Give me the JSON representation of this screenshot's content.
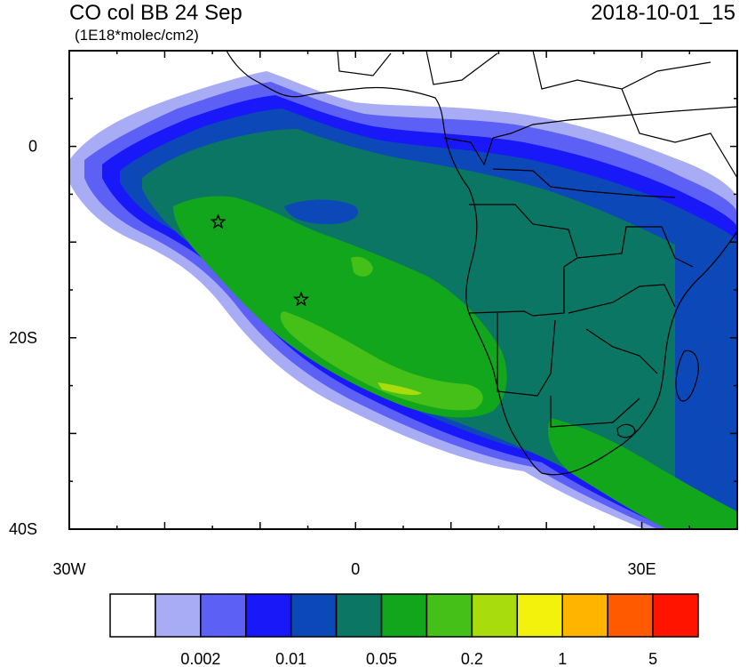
{
  "header": {
    "title": "CO col BB 24 Sep",
    "units": "(1E18*molec/cm2)",
    "datetime": "2018-10-01_15"
  },
  "axes": {
    "x_range_deg": [
      -30,
      40
    ],
    "y_range_deg": [
      -40,
      10
    ],
    "x_ticks": [
      {
        "value": -30,
        "label": "30W"
      },
      {
        "value": 0,
        "label": "0"
      },
      {
        "value": 30,
        "label": "30E"
      }
    ],
    "y_ticks": [
      {
        "value": 0,
        "label": "0"
      },
      {
        "value": -20,
        "label": "20S"
      },
      {
        "value": -40,
        "label": "40S"
      }
    ]
  },
  "colorbar": {
    "colors": [
      "#ffffff",
      "#a8acf4",
      "#5c60f4",
      "#1818f8",
      "#0c48b8",
      "#0b7663",
      "#12a61c",
      "#44c018",
      "#a8dc0c",
      "#f2f20c",
      "#ffb400",
      "#ff5a00",
      "#ff1400"
    ],
    "labels": [
      "0.002",
      "0.01",
      "0.05",
      "0.2",
      "1",
      "5"
    ]
  },
  "markers": [
    {
      "name": "star",
      "lon": -14.4,
      "lat": -7.9
    },
    {
      "name": "star",
      "lon": -5.7,
      "lat": -16.0
    }
  ]
}
